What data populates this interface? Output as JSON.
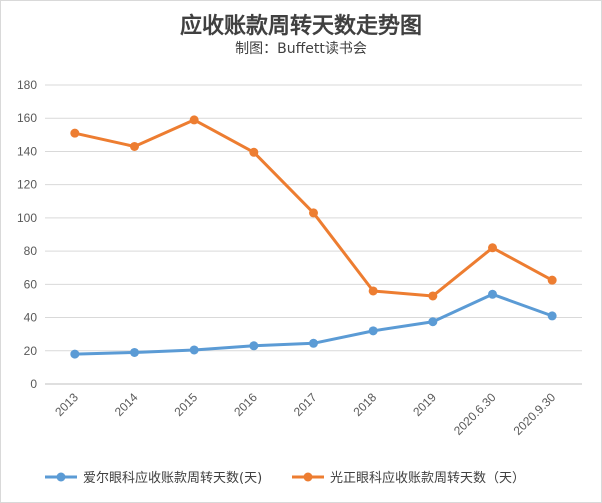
{
  "chart_data": {
    "type": "line",
    "title": "应收账款周转天数走势图",
    "subtitle": "制图：Buffett读书会",
    "categories": [
      "2013",
      "2014",
      "2015",
      "2016",
      "2017",
      "2018",
      "2019",
      "2020.6.30",
      "2020.9.30"
    ],
    "ylim": [
      0,
      180
    ],
    "yticks": [
      "0",
      "20",
      "40",
      "60",
      "80",
      "100",
      "120",
      "140",
      "160",
      "180"
    ],
    "grid": true,
    "legend_position": "bottom",
    "series": [
      {
        "name": "爱尔眼科应收账款周转天数(天)",
        "color": "#5b9bd5",
        "values": [
          18,
          19,
          20.5,
          23,
          24.5,
          32,
          37.5,
          54,
          41
        ]
      },
      {
        "name": "光正眼科应收账款周转天数（天）",
        "color": "#ed7d31",
        "values": [
          151,
          143,
          159,
          139.5,
          103,
          56,
          53,
          82,
          62.5
        ]
      }
    ]
  }
}
